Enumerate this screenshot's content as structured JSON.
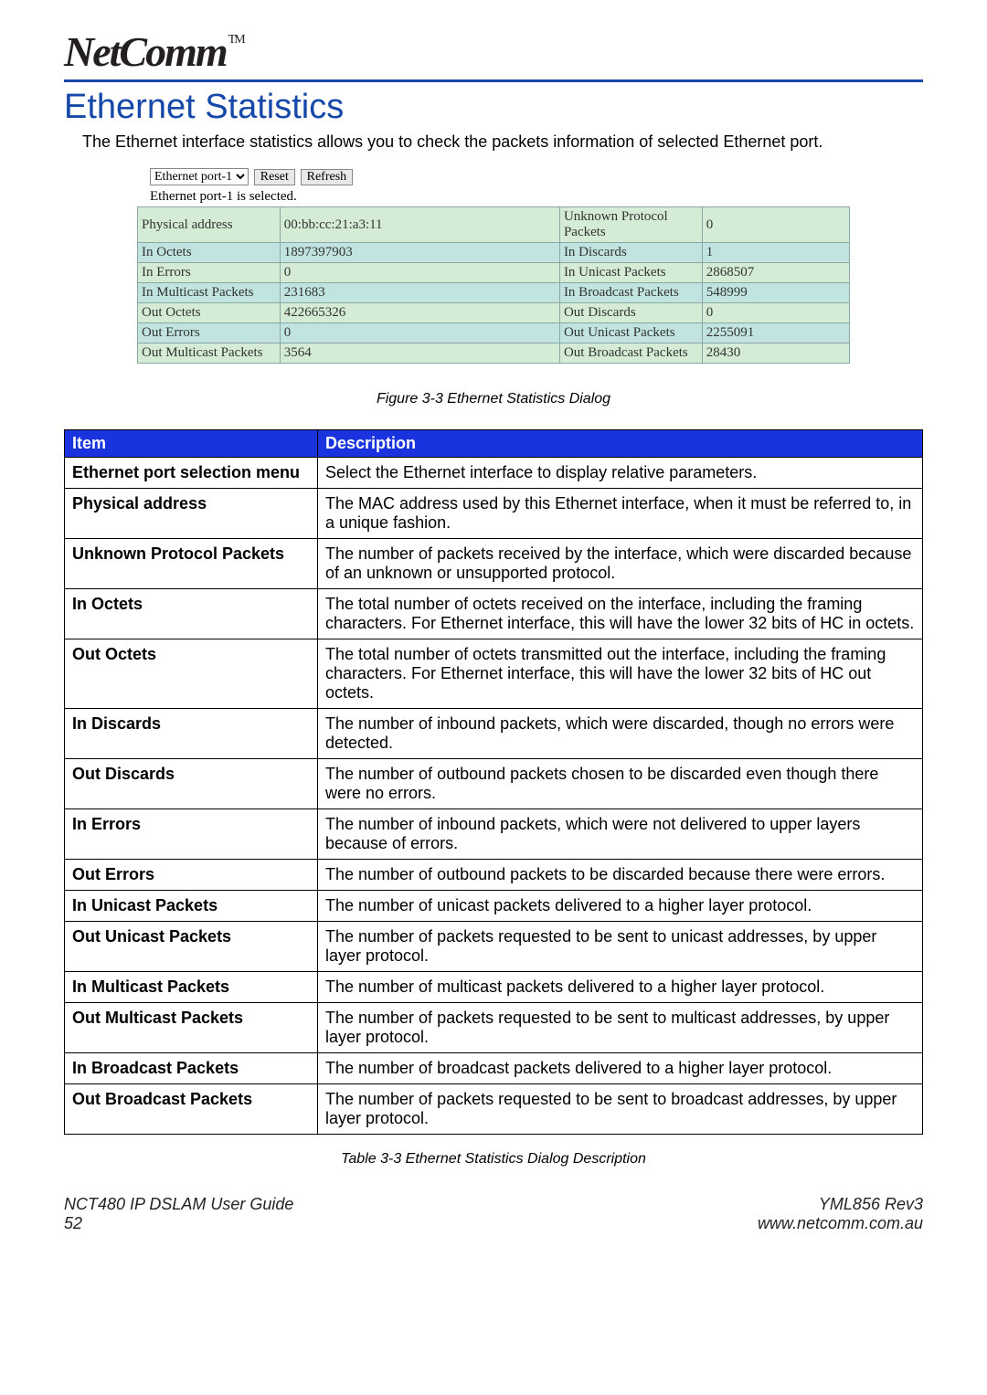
{
  "logo": {
    "text": "NetComm",
    "tm": "TM"
  },
  "page_title": "Ethernet Statistics",
  "intro": "The Ethernet interface statistics allows you to check the packets information of selected Ethernet port.",
  "dialog": {
    "dropdown_value": "Ethernet port-1",
    "reset_label": "Reset",
    "refresh_label": "Refresh",
    "selected_text": "Ethernet port-1 is selected.",
    "colors": {
      "row_green": "#d4ecd5",
      "row_teal": "#c1e4e1",
      "border": "#8aa7a5"
    },
    "rows": [
      {
        "bg": "a",
        "l1": "Physical address",
        "v1": "00:bb:cc:21:a3:11",
        "l2": "Unknown Protocol Packets",
        "v2": "0"
      },
      {
        "bg": "b",
        "l1": "In Octets",
        "v1": "1897397903",
        "l2": "In Discards",
        "v2": "1"
      },
      {
        "bg": "a",
        "l1": "In Errors",
        "v1": "0",
        "l2": "In Unicast Packets",
        "v2": "2868507"
      },
      {
        "bg": "b",
        "l1": "In Multicast Packets",
        "v1": "231683",
        "l2": "In Broadcast Packets",
        "v2": "548999"
      },
      {
        "bg": "a",
        "l1": "Out Octets",
        "v1": "422665326",
        "l2": "Out Discards",
        "v2": "0"
      },
      {
        "bg": "b",
        "l1": "Out Errors",
        "v1": "0",
        "l2": "Out Unicast Packets",
        "v2": "2255091"
      },
      {
        "bg": "a",
        "l1": "Out Multicast Packets",
        "v1": "3564",
        "l2": "Out Broadcast Packets",
        "v2": "28430"
      }
    ]
  },
  "figure_caption": "Figure 3-3 Ethernet Statistics Dialog",
  "desc_table": {
    "header_item": "Item",
    "header_desc": "Description",
    "header_bg": "#1934df",
    "rows": [
      {
        "item": "Ethernet port selection menu",
        "desc": "Select the Ethernet interface to display relative parameters."
      },
      {
        "item": "Physical address",
        "desc": "The MAC address used by this Ethernet interface, when it must be referred to, in a unique fashion."
      },
      {
        "item": "Unknown Protocol Packets",
        "desc": "The number of packets received by the interface, which were discarded because of an unknown or unsupported protocol."
      },
      {
        "item": "In Octets",
        "desc": "The total number of octets received on the interface, including the framing characters. For Ethernet interface, this will have the lower 32 bits of HC in octets."
      },
      {
        "item": "Out Octets",
        "desc": "The total number of octets transmitted out the interface, including the framing characters. For Ethernet interface, this will have the lower 32 bits of HC out octets."
      },
      {
        "item": "In Discards",
        "desc": "The number of inbound packets, which were discarded, though no errors were detected."
      },
      {
        "item": "Out Discards",
        "desc": "The number of outbound packets chosen to be discarded even though there were no errors."
      },
      {
        "item": "In Errors",
        "desc": "The number of inbound packets, which were not delivered to upper layers because of errors."
      },
      {
        "item": "Out Errors",
        "desc": "The number of outbound packets to be discarded because there were errors."
      },
      {
        "item": "In Unicast Packets",
        "desc": "The number of unicast packets delivered to a higher layer protocol."
      },
      {
        "item": "Out Unicast Packets",
        "desc": "The number of packets requested to be sent to unicast addresses, by upper layer protocol."
      },
      {
        "item": "In Multicast Packets",
        "desc": "The number of multicast packets delivered to a higher layer protocol."
      },
      {
        "item": "Out Multicast Packets",
        "desc": "The number of packets requested to be sent to multicast addresses, by upper layer protocol."
      },
      {
        "item": "In Broadcast Packets",
        "desc": "The number of broadcast packets delivered to a higher layer protocol."
      },
      {
        "item": "Out Broadcast Packets",
        "desc": "The number of packets requested to be sent to broadcast addresses, by upper layer protocol."
      }
    ]
  },
  "table_caption": "Table 3-3 Ethernet Statistics Dialog Description",
  "footer": {
    "guide": "NCT480 IP DSLAM User Guide",
    "page_num": "52",
    "rev": "YML856 Rev3",
    "url": "www.netcomm.com.au"
  }
}
